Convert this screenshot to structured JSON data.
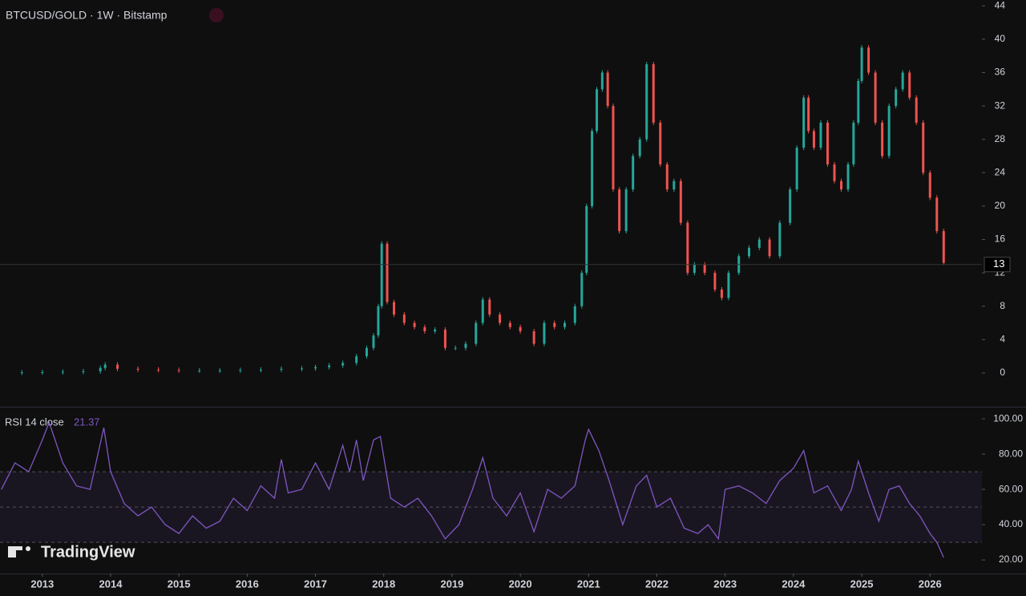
{
  "chart_data": [
    {
      "type": "candle",
      "title": "BTCUSD/GOLD · 1W · Bitstamp",
      "x": [
        2012.4,
        2012.7,
        2013.0,
        2013.3,
        2013.6,
        2013.85,
        2013.92,
        2014.1,
        2014.4,
        2014.7,
        2015.0,
        2015.3,
        2015.6,
        2015.9,
        2016.2,
        2016.5,
        2016.8,
        2017.0,
        2017.2,
        2017.4,
        2017.6,
        2017.75,
        2017.85,
        2017.92,
        2017.97,
        2018.05,
        2018.15,
        2018.3,
        2018.45,
        2018.6,
        2018.75,
        2018.9,
        2019.05,
        2019.2,
        2019.35,
        2019.45,
        2019.55,
        2019.7,
        2019.85,
        2020.0,
        2020.2,
        2020.35,
        2020.5,
        2020.65,
        2020.8,
        2020.9,
        2020.97,
        2021.05,
        2021.12,
        2021.2,
        2021.28,
        2021.36,
        2021.45,
        2021.55,
        2021.65,
        2021.75,
        2021.85,
        2021.95,
        2022.05,
        2022.15,
        2022.25,
        2022.35,
        2022.45,
        2022.55,
        2022.7,
        2022.85,
        2022.95,
        2023.05,
        2023.2,
        2023.35,
        2023.5,
        2023.65,
        2023.8,
        2023.95,
        2024.05,
        2024.15,
        2024.22,
        2024.3,
        2024.4,
        2024.5,
        2024.6,
        2024.7,
        2024.8,
        2024.88,
        2024.95,
        2025.0,
        2025.1,
        2025.2,
        2025.3,
        2025.4,
        2025.5,
        2025.6,
        2025.7,
        2025.8,
        2025.9,
        2026.0,
        2026.1,
        2026.2
      ],
      "values": [
        0.05,
        0.07,
        0.1,
        0.15,
        0.2,
        0.6,
        1.0,
        0.5,
        0.4,
        0.35,
        0.3,
        0.3,
        0.3,
        0.35,
        0.4,
        0.5,
        0.55,
        0.7,
        0.9,
        1.2,
        2.0,
        3.0,
        4.5,
        8.0,
        15.5,
        8.5,
        7.0,
        6.0,
        5.5,
        5.0,
        5.2,
        3.0,
        3.0,
        3.5,
        6.0,
        8.8,
        7.0,
        6.0,
        5.5,
        5.0,
        3.5,
        6.0,
        5.5,
        6.0,
        8.0,
        12.0,
        20.0,
        29.0,
        34.0,
        36.0,
        32.0,
        22.0,
        17.0,
        22.0,
        26.0,
        28.0,
        37.0,
        30.0,
        25.0,
        22.0,
        23.0,
        18.0,
        12.0,
        13.0,
        12.0,
        10.0,
        9.0,
        12.0,
        14.0,
        15.0,
        16.0,
        14.0,
        18.0,
        22.0,
        27.0,
        33.0,
        29.0,
        27.0,
        30.0,
        25.0,
        23.0,
        22.0,
        25.0,
        30.0,
        35.0,
        39.0,
        36.0,
        30.0,
        26.0,
        32.0,
        34.0,
        36.0,
        33.0,
        30.0,
        24.0,
        21.0,
        17.0,
        13.2
      ],
      "up_color": "#26a69a",
      "down_color": "#ef5350",
      "last_price": 13,
      "xlim": [
        2012.38,
        2026.76
      ],
      "xticks": [
        2013,
        2014,
        2015,
        2016,
        2017,
        2018,
        2019,
        2020,
        2021,
        2022,
        2023,
        2024,
        2025,
        2026
      ],
      "ylim": [
        -3.85,
        44.7
      ],
      "yticks": [
        0,
        4,
        8,
        12,
        16,
        20,
        24,
        28,
        32,
        36,
        40,
        44
      ]
    },
    {
      "type": "line",
      "title": "RSI 14 close",
      "color": "#7e57c2",
      "x": [
        2012.4,
        2012.6,
        2012.8,
        2013.0,
        2013.1,
        2013.3,
        2013.5,
        2013.7,
        2013.9,
        2014.0,
        2014.2,
        2014.4,
        2014.6,
        2014.8,
        2015.0,
        2015.2,
        2015.4,
        2015.6,
        2015.8,
        2016.0,
        2016.2,
        2016.4,
        2016.5,
        2016.6,
        2016.8,
        2017.0,
        2017.2,
        2017.4,
        2017.5,
        2017.6,
        2017.7,
        2017.85,
        2017.95,
        2018.1,
        2018.3,
        2018.5,
        2018.7,
        2018.9,
        2019.1,
        2019.3,
        2019.45,
        2019.6,
        2019.8,
        2020.0,
        2020.2,
        2020.4,
        2020.6,
        2020.8,
        2020.95,
        2021.0,
        2021.15,
        2021.3,
        2021.5,
        2021.7,
        2021.85,
        2022.0,
        2022.2,
        2022.4,
        2022.6,
        2022.75,
        2022.9,
        2023.0,
        2023.2,
        2023.4,
        2023.6,
        2023.8,
        2024.0,
        2024.15,
        2024.3,
        2024.5,
        2024.7,
        2024.85,
        2024.95,
        2025.1,
        2025.25,
        2025.4,
        2025.55,
        2025.7,
        2025.85,
        2026.0,
        2026.1,
        2026.2
      ],
      "values": [
        60,
        75,
        70,
        88,
        98,
        75,
        62,
        60,
        95,
        70,
        52,
        45,
        50,
        40,
        35,
        45,
        38,
        42,
        55,
        48,
        62,
        55,
        77,
        58,
        60,
        75,
        60,
        85,
        70,
        88,
        65,
        88,
        90,
        55,
        50,
        55,
        45,
        32,
        40,
        60,
        78,
        55,
        45,
        58,
        36,
        60,
        55,
        62,
        88,
        94,
        82,
        65,
        40,
        62,
        68,
        50,
        55,
        38,
        35,
        40,
        32,
        60,
        62,
        58,
        52,
        65,
        72,
        82,
        58,
        62,
        48,
        60,
        76,
        58,
        42,
        60,
        62,
        52,
        45,
        35,
        30,
        21.37
      ],
      "xlim": [
        2012.38,
        2026.76
      ],
      "ylim": [
        12.3,
        105.5
      ],
      "yticks": [
        {
          "value": 20,
          "label": "20.00"
        },
        {
          "value": 40,
          "label": "40.00"
        },
        {
          "value": 60,
          "label": "60.00"
        },
        {
          "value": 80,
          "label": "80.00"
        },
        {
          "value": 100,
          "label": "100.00"
        }
      ],
      "bands": [
        30,
        50,
        70
      ]
    }
  ],
  "branding": "TradingView"
}
